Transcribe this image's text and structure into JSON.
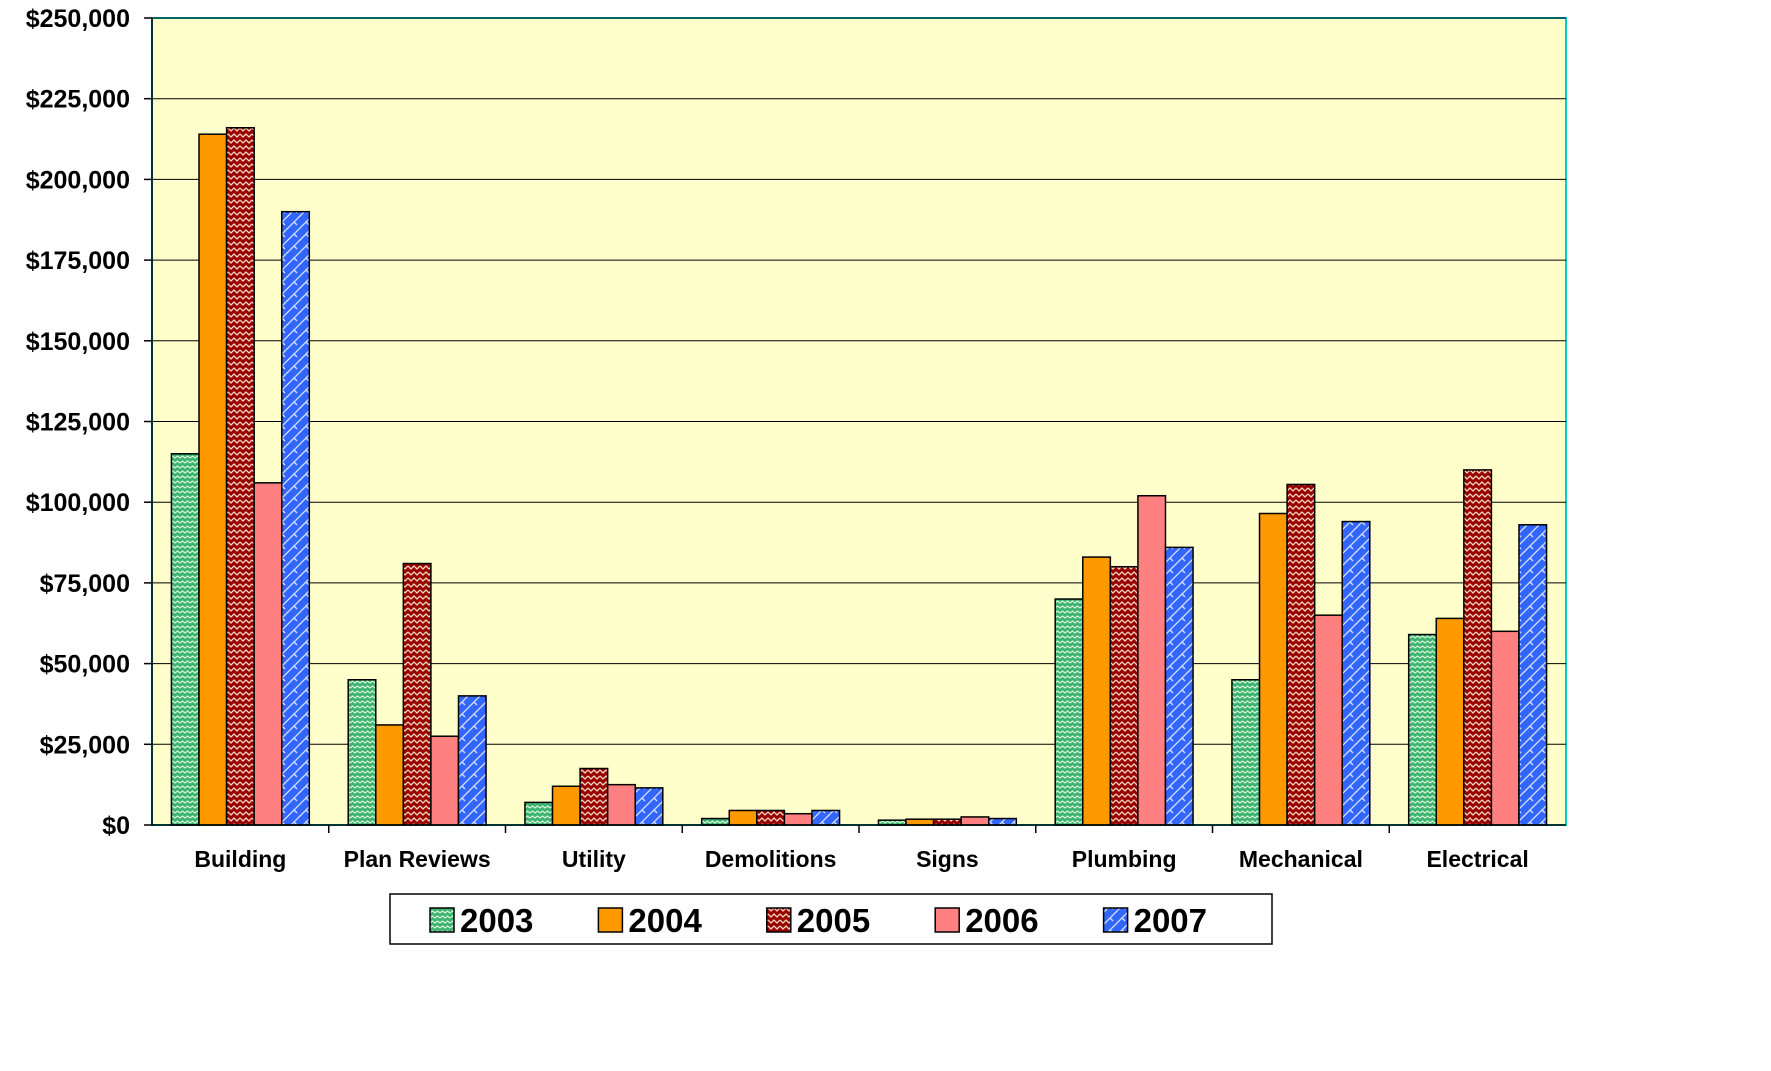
{
  "chart_data": {
    "type": "bar",
    "categories": [
      "Building",
      "Plan Reviews",
      "Utility",
      "Demolitions",
      "Signs",
      "Plumbing",
      "Mechanical",
      "Electrical"
    ],
    "series": [
      {
        "name": "2003",
        "color": "#3CB371",
        "pattern": "dot-zigzag",
        "values": [
          115000,
          45000,
          7000,
          2000,
          1500,
          70000,
          45000,
          59000
        ]
      },
      {
        "name": "2004",
        "color": "#FF9900",
        "pattern": "solid",
        "values": [
          214000,
          31000,
          12000,
          4500,
          1800,
          83000,
          96500,
          64000
        ]
      },
      {
        "name": "2005",
        "color": "#990000",
        "pattern": "zigzag",
        "values": [
          216000,
          81000,
          17500,
          4500,
          1800,
          80000,
          105500,
          110000
        ]
      },
      {
        "name": "2006",
        "color": "#FF8080",
        "pattern": "solid",
        "values": [
          106000,
          27500,
          12500,
          3500,
          2500,
          102000,
          65000,
          60000
        ]
      },
      {
        "name": "2007",
        "color": "#3366FF",
        "pattern": "diagonal-brick",
        "values": [
          190000,
          40000,
          11500,
          4500,
          2000,
          86000,
          94000,
          93000
        ]
      }
    ],
    "ylim": [
      0,
      250000
    ],
    "yticks": [
      0,
      25000,
      50000,
      75000,
      100000,
      125000,
      150000,
      175000,
      200000,
      225000,
      250000
    ],
    "ytick_labels": [
      "$0",
      "$25,000",
      "$50,000",
      "$75,000",
      "$100,000",
      "$125,000",
      "$150,000",
      "$175,000",
      "$200,000",
      "$225,000",
      "$250,000"
    ],
    "grid": true,
    "legend_position": "bottom",
    "plot_background": "#FFFFCC",
    "title": "",
    "xlabel": "",
    "ylabel": ""
  }
}
